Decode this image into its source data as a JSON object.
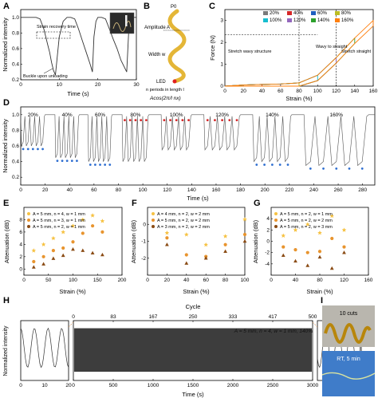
{
  "chart_data": [
    {
      "panel": "A",
      "type": "line",
      "xlabel": "Time (s)",
      "ylabel": "Normalized intensity",
      "xlim": [
        0,
        30
      ],
      "ylim": [
        0.2,
        1.1
      ],
      "xticks": [
        "0",
        "10",
        "20",
        "30"
      ],
      "yticks": [
        "0.2",
        "0.4",
        "0.6",
        "0.8",
        "1.0"
      ],
      "annotations": [
        "Strain recovery time",
        "Buckle upon unloading"
      ],
      "x": [
        0,
        2,
        4,
        5,
        6,
        7,
        7.5,
        8,
        8.5,
        9,
        10,
        11,
        12,
        13,
        14,
        15,
        16,
        17,
        18,
        18.6,
        19,
        19.5,
        20,
        21,
        22,
        23,
        24,
        25,
        26,
        27,
        27.5,
        28,
        28.5,
        29,
        30
      ],
      "values": [
        1.0,
        1.0,
        1.0,
        0.98,
        0.85,
        0.65,
        0.55,
        0.42,
        0.32,
        0.26,
        0.75,
        0.95,
        1.0,
        1.0,
        0.98,
        0.85,
        0.7,
        0.55,
        0.4,
        0.3,
        0.75,
        0.95,
        1.0,
        1.0,
        0.98,
        0.85,
        0.72,
        0.6,
        0.45,
        0.35,
        0.3,
        0.8,
        0.95,
        1.0,
        1.0
      ]
    },
    {
      "panel": "B",
      "type": "diagram",
      "labels": [
        "P0",
        "Amplitude A",
        "Width w",
        "LED",
        "n periods in length l"
      ],
      "formula": "Acos(2π/l nx)"
    },
    {
      "panel": "C",
      "type": "line",
      "xlabel": "Strain (%)",
      "ylabel": "Force (N)",
      "xlim": [
        0,
        160
      ],
      "ylim": [
        0,
        3.5
      ],
      "xticks": [
        "0",
        "20",
        "40",
        "60",
        "80",
        "100",
        "120",
        "140",
        "160"
      ],
      "yticks": [
        "0",
        "1",
        "2",
        "3"
      ],
      "legend": [
        "20%",
        "40%",
        "60%",
        "80%",
        "100%",
        "120%",
        "140%",
        "160%"
      ],
      "colors": [
        "#7a7a7a",
        "#d62728",
        "#1f5fbf",
        "#bcbd22",
        "#17becf",
        "#9467bd",
        "#2ca02c",
        "#ff7f0e"
      ],
      "regions": [
        "Stretch wavy structure",
        "Wavy to straight",
        "Stretch straight"
      ],
      "x": [
        0,
        20,
        40,
        60,
        80,
        100,
        120,
        140,
        160
      ],
      "values": [
        0.0,
        0.05,
        0.08,
        0.1,
        0.15,
        0.5,
        1.3,
        2.2,
        3.0
      ]
    },
    {
      "panel": "D",
      "type": "line",
      "xlabel": "Time (s)",
      "ylabel": "Normalized intensity",
      "xlim": [
        0,
        290
      ],
      "ylim": [
        0.1,
        1.1
      ],
      "xticks": [
        "0",
        "20",
        "40",
        "60",
        "80",
        "100",
        "120",
        "140",
        "160",
        "180",
        "200",
        "220",
        "240",
        "260",
        "280"
      ],
      "yticks": [
        "0.2",
        "0.4",
        "0.6",
        "0.8",
        "1.0"
      ],
      "strain_labels": [
        "20%",
        "40%",
        "60%",
        "80%",
        "100%",
        "120%",
        "140%",
        "160%"
      ],
      "segment_starts": [
        0,
        28,
        55,
        83,
        115,
        150,
        190,
        232
      ],
      "segment_ends": [
        20,
        48,
        75,
        105,
        140,
        180,
        222,
        285
      ],
      "valley_min": [
        0.6,
        0.45,
        0.4,
        0.4,
        0.55,
        0.55,
        0.4,
        0.35
      ]
    },
    {
      "panel": "E",
      "type": "scatter",
      "xlabel": "Strain (%)",
      "ylabel": "Attenuation (dB)",
      "xlim": [
        0,
        200
      ],
      "ylim": [
        -1,
        10
      ],
      "xticks": [
        "0",
        "50",
        "100",
        "150",
        "200"
      ],
      "yticks": [
        "0",
        "2",
        "4",
        "6",
        "8"
      ],
      "series": [
        {
          "name": "A = 5 mm, n = 4, w = 1 mm",
          "color": "#f6c243",
          "x": [
            20,
            40,
            60,
            80,
            100,
            120,
            140,
            160
          ],
          "values": [
            3.0,
            4.0,
            5.0,
            6.0,
            7.0,
            8.0,
            8.7,
            7.8
          ]
        },
        {
          "name": "A = 5 mm, n = 3, w = 1 mm",
          "color": "#e8942e",
          "x": [
            20,
            40,
            60,
            80,
            100,
            120,
            140,
            160
          ],
          "values": [
            1.2,
            2.0,
            3.0,
            3.4,
            4.4,
            5.8,
            7.0,
            6.0
          ]
        },
        {
          "name": "A = 5 mm, n = 2, w = 1 mm",
          "color": "#8a4b14",
          "x": [
            20,
            40,
            60,
            80,
            100,
            120,
            140,
            160
          ],
          "values": [
            0.3,
            0.8,
            1.7,
            2.2,
            3.2,
            3.0,
            2.6,
            2.3
          ]
        }
      ]
    },
    {
      "panel": "F",
      "type": "scatter",
      "xlabel": "Strain (%)",
      "ylabel": "Attenuation (dB)",
      "xlim": [
        0,
        100
      ],
      "ylim": [
        -3,
        1
      ],
      "xticks": [
        "0",
        "20",
        "40",
        "60",
        "80",
        "100"
      ],
      "yticks": [
        "-2",
        "-1",
        "0"
      ],
      "series": [
        {
          "name": "A = 4 mm, n = 2, w = 2 mm",
          "color": "#f6c243",
          "x": [
            20,
            40,
            60,
            80,
            100
          ],
          "values": [
            -0.5,
            -0.6,
            -1.2,
            -0.7,
            0.3
          ]
        },
        {
          "name": "A = 5 mm, n = 2, w = 2 mm",
          "color": "#e8942e",
          "x": [
            20,
            40,
            60,
            80,
            100
          ],
          "values": [
            -0.8,
            -1.8,
            -1.9,
            -1.2,
            -0.6
          ]
        },
        {
          "name": "A = 3 mm, n = 2, w = 2 mm",
          "color": "#8a4b14",
          "x": [
            20,
            40,
            60,
            80,
            100
          ],
          "values": [
            -1.2,
            -2.3,
            -2.0,
            -1.6,
            -1.0
          ]
        }
      ]
    },
    {
      "panel": "G",
      "type": "scatter",
      "xlabel": "Strain (%)",
      "ylabel": "Attenuation (dB)",
      "xlim": [
        0,
        160
      ],
      "ylim": [
        -6,
        6
      ],
      "xticks": [
        "0",
        "40",
        "80",
        "120",
        "160"
      ],
      "yticks": [
        "-4",
        "-2",
        "0",
        "2",
        "4"
      ],
      "series": [
        {
          "name": "A = 5 mm, n = 2, w = 1 mm",
          "color": "#f6c243",
          "x": [
            20,
            40,
            60,
            80,
            100,
            120
          ],
          "values": [
            1.0,
            2.0,
            3.0,
            1.5,
            4.5,
            2.0
          ]
        },
        {
          "name": "A = 5 mm, n = 2, w = 2 mm",
          "color": "#e8942e",
          "x": [
            20,
            40,
            60,
            80,
            100,
            120
          ],
          "values": [
            -1.0,
            -1.5,
            -2.0,
            -1.8,
            0.5,
            -1.0
          ]
        },
        {
          "name": "A = 5 mm, n = 2, w = 3 mm",
          "color": "#8a4b14",
          "x": [
            20,
            40,
            60,
            80,
            100,
            120
          ],
          "values": [
            -2.5,
            -3.5,
            -4.3,
            -2.8,
            -4.8,
            -2.0
          ]
        }
      ]
    },
    {
      "panel": "H",
      "type": "line",
      "xlabel": "Time (s)",
      "ylabel": "Normalized intensity",
      "top_axis_label": "Cycle",
      "top_ticks": [
        "0",
        "83",
        "167",
        "250",
        "333",
        "417",
        "500"
      ],
      "xlim": [
        0,
        3000
      ],
      "ylim": [
        0.5,
        1.05
      ],
      "xticks": [
        "0",
        "500",
        "1000",
        "1500",
        "2000",
        "2500",
        "3000"
      ],
      "inset_left_ticks": [
        "0",
        "10",
        "20"
      ],
      "inset_right_ticks": [
        "3040",
        "3050"
      ],
      "annotation": "A = 5 mm, n = 4, w = 1 mm, 140%"
    },
    {
      "panel": "I",
      "type": "photo",
      "labels": [
        "10 cuts",
        "RT, 5 min"
      ]
    }
  ],
  "panel_letters": [
    "A",
    "B",
    "C",
    "D",
    "E",
    "F",
    "G",
    "H",
    "I"
  ]
}
